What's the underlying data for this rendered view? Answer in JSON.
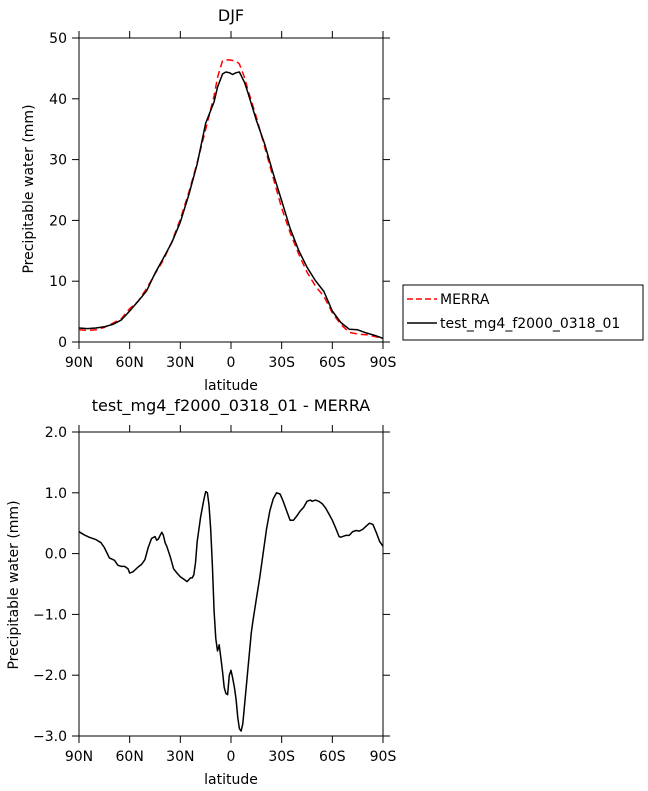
{
  "chart_data": [
    {
      "type": "line",
      "title": "DJF",
      "xlabel": "latitude",
      "ylabel": "Precipitable water (mm)",
      "xlim": [
        90,
        -90
      ],
      "ylim": [
        0,
        50
      ],
      "x_ticks": [
        90,
        60,
        30,
        0,
        -30,
        -60,
        -90
      ],
      "x_tick_labels": [
        "90N",
        "60N",
        "30N",
        "0",
        "30S",
        "60S",
        "90S"
      ],
      "y_ticks": [
        0,
        10,
        20,
        30,
        40,
        50
      ],
      "y_tick_labels": [
        "0",
        "10",
        "20",
        "30",
        "40",
        "50"
      ],
      "grid": false,
      "legend": "right",
      "series": [
        {
          "name": "MERRA",
          "color": "#ff0000",
          "dash": "dashed",
          "x": [
            90,
            85,
            80,
            75,
            70,
            65,
            60,
            55,
            50,
            45,
            40,
            35,
            30,
            25,
            20,
            15,
            10,
            8,
            5,
            3,
            1,
            -1,
            -3,
            -5,
            -8,
            -10,
            -15,
            -20,
            -25,
            -30,
            -35,
            -40,
            -45,
            -50,
            -55,
            -60,
            -65,
            -70,
            -75,
            -80,
            -85,
            -88,
            -90
          ],
          "y": [
            2.0,
            1.9,
            2.0,
            2.4,
            3.1,
            3.8,
            5.5,
            6.7,
            8.8,
            11.2,
            13.5,
            16.5,
            20.2,
            24.6,
            29.5,
            35.0,
            40.5,
            43.5,
            46.3,
            46.4,
            46.4,
            46.3,
            46.2,
            45.7,
            43.5,
            41.5,
            37.0,
            32.0,
            27.0,
            22.0,
            18.0,
            14.5,
            11.5,
            9.2,
            7.5,
            4.8,
            2.9,
            1.6,
            1.3,
            1.2,
            0.9,
            0.7,
            0.6
          ]
        },
        {
          "name": "test_mg4_f2000_0318_01",
          "color": "#000000",
          "dash": "solid",
          "x": [
            90,
            85,
            80,
            75,
            70,
            65,
            60,
            55,
            50,
            45,
            40,
            35,
            30,
            25,
            20,
            15,
            10,
            8,
            5,
            3,
            1,
            -1,
            -3,
            -5,
            -8,
            -10,
            -15,
            -20,
            -25,
            -30,
            -35,
            -40,
            -45,
            -50,
            -55,
            -60,
            -65,
            -70,
            -75,
            -80,
            -85,
            -88,
            -90
          ],
          "y": [
            2.3,
            2.2,
            2.3,
            2.5,
            2.9,
            3.6,
            5.1,
            6.7,
            8.4,
            11.3,
            13.8,
            16.4,
            19.7,
            24.2,
            29.3,
            36.0,
            39.5,
            41.9,
            44.1,
            44.4,
            44.3,
            44.0,
            44.3,
            44.4,
            42.7,
            41.0,
            36.5,
            32.5,
            27.7,
            23.2,
            18.7,
            15.1,
            12.3,
            10.1,
            8.3,
            5.1,
            3.2,
            2.1,
            2.0,
            1.5,
            1.1,
            0.8,
            0.6
          ]
        }
      ]
    },
    {
      "type": "line",
      "title": "test_mg4_f2000_0318_01 - MERRA",
      "xlabel": "latitude",
      "ylabel": "Precipitable water (mm)",
      "xlim": [
        90,
        -90
      ],
      "ylim": [
        -3.0,
        2.0
      ],
      "x_ticks": [
        90,
        60,
        30,
        0,
        -30,
        -60,
        -90
      ],
      "x_tick_labels": [
        "90N",
        "60N",
        "30N",
        "0",
        "30S",
        "60S",
        "90S"
      ],
      "y_ticks": [
        2.0,
        1.0,
        0.0,
        -1.0,
        -2.0,
        -3.0
      ],
      "y_tick_labels": [
        "2.0",
        "1.0",
        "0.0",
        "−1.0",
        "−2.0",
        "−3.0"
      ],
      "grid": false,
      "series": [
        {
          "color": "#000000",
          "dash": "solid",
          "x": [
            90,
            87,
            84,
            80,
            77,
            75,
            72,
            69,
            67,
            65,
            63,
            61,
            60,
            58,
            55,
            53,
            51,
            49,
            47,
            45,
            44,
            43,
            42,
            41,
            40,
            39,
            38,
            36,
            35,
            34,
            32,
            30,
            28,
            26,
            24,
            23,
            22,
            21,
            20,
            19,
            18,
            16,
            15,
            14,
            13,
            12,
            11,
            10,
            9,
            8,
            7,
            6,
            5,
            4,
            3,
            2,
            1,
            0,
            -1,
            -2,
            -3,
            -4,
            -5,
            -6,
            -7,
            -8,
            -9,
            -10,
            -11,
            -12,
            -13,
            -15,
            -17,
            -19,
            -21,
            -23,
            -25,
            -27,
            -29,
            -30,
            -31,
            -33,
            -35,
            -37,
            -39,
            -41,
            -43,
            -45,
            -47,
            -48,
            -50,
            -52,
            -54,
            -56,
            -58,
            -60,
            -62,
            -64,
            -65,
            -66,
            -68,
            -70,
            -72,
            -74,
            -76,
            -78,
            -80,
            -82,
            -84,
            -86,
            -88,
            -90
          ],
          "y": [
            0.36,
            0.31,
            0.27,
            0.23,
            0.18,
            0.1,
            -0.07,
            -0.11,
            -0.19,
            -0.21,
            -0.21,
            -0.25,
            -0.32,
            -0.3,
            -0.22,
            -0.18,
            -0.1,
            0.1,
            0.25,
            0.28,
            0.22,
            0.24,
            0.3,
            0.35,
            0.3,
            0.18,
            0.12,
            -0.05,
            -0.15,
            -0.25,
            -0.32,
            -0.38,
            -0.42,
            -0.46,
            -0.4,
            -0.4,
            -0.35,
            -0.15,
            0.2,
            0.4,
            0.6,
            0.9,
            1.02,
            1.0,
            0.8,
            0.4,
            -0.2,
            -0.95,
            -1.4,
            -1.6,
            -1.5,
            -1.72,
            -1.95,
            -2.2,
            -2.3,
            -2.32,
            -2.0,
            -1.92,
            -2.05,
            -2.2,
            -2.4,
            -2.7,
            -2.88,
            -2.92,
            -2.8,
            -2.5,
            -2.2,
            -1.9,
            -1.6,
            -1.3,
            -1.1,
            -0.75,
            -0.4,
            0.0,
            0.4,
            0.7,
            0.9,
            1.0,
            0.98,
            0.92,
            0.85,
            0.7,
            0.55,
            0.55,
            0.62,
            0.7,
            0.76,
            0.86,
            0.88,
            0.86,
            0.88,
            0.86,
            0.82,
            0.75,
            0.65,
            0.55,
            0.42,
            0.28,
            0.27,
            0.28,
            0.3,
            0.3,
            0.36,
            0.38,
            0.37,
            0.4,
            0.45,
            0.5,
            0.48,
            0.35,
            0.2,
            0.12
          ]
        }
      ]
    }
  ]
}
